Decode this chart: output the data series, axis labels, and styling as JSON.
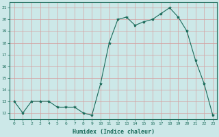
{
  "x": [
    0,
    1,
    2,
    3,
    4,
    5,
    6,
    7,
    8,
    9,
    10,
    11,
    12,
    13,
    14,
    15,
    16,
    17,
    18,
    19,
    20,
    21,
    22,
    23
  ],
  "y": [
    13,
    12,
    13,
    13,
    13,
    12.5,
    12.5,
    12.5,
    12,
    11.8,
    14.5,
    18,
    20,
    20.2,
    19.5,
    19.8,
    20,
    20.5,
    21,
    20.2,
    19,
    16.5,
    14.5,
    11.8
  ],
  "line_color": "#1a6b5a",
  "marker": "*",
  "marker_size": 3,
  "bg_color": "#cce8e8",
  "grid_major_color": "#d4a0a0",
  "grid_minor_color": "#e8c8c8",
  "xlabel": "Humidex (Indice chaleur)",
  "ylabel_ticks": [
    12,
    13,
    14,
    15,
    16,
    17,
    18,
    19,
    20,
    21
  ],
  "xlim": [
    -0.5,
    23.5
  ],
  "ylim": [
    11.5,
    21.5
  ]
}
